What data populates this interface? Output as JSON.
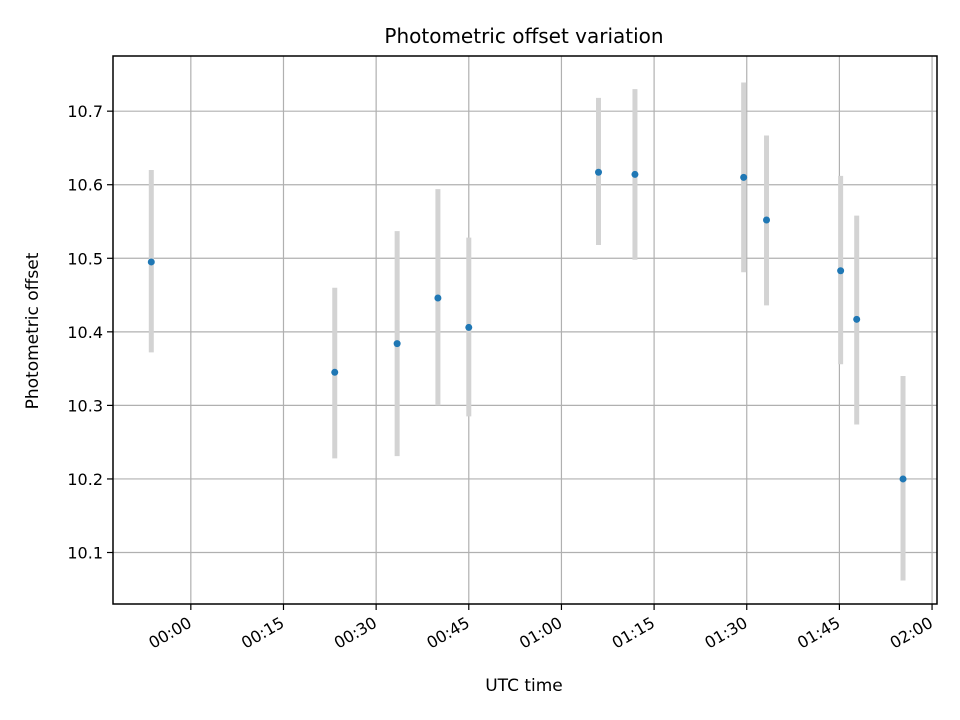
{
  "chart_data": {
    "type": "scatter",
    "title": "Photometric offset variation",
    "xlabel": "UTC time",
    "ylabel": "Photometric offset",
    "x_ticks": [
      "00:00",
      "00:15",
      "00:30",
      "00:45",
      "01:00",
      "01:15",
      "01:30",
      "01:45",
      "02:00"
    ],
    "y_ticks": [
      "10.1",
      "10.2",
      "10.3",
      "10.4",
      "10.5",
      "10.6",
      "10.7"
    ],
    "xlim": [
      "-00:12.6",
      "02:00.8"
    ],
    "ylim": [
      10.03,
      10.775
    ],
    "grid": true,
    "colors": {
      "points": "#1f77b4",
      "errorbars": "#d3d3d3",
      "grid": "#b0b0b0"
    },
    "points": [
      {
        "time": "-00:06.4",
        "value": 10.495,
        "low": 10.372,
        "high": 10.62
      },
      {
        "time": "00:23.3",
        "value": 10.345,
        "low": 10.228,
        "high": 10.46
      },
      {
        "time": "00:33.4",
        "value": 10.384,
        "low": 10.231,
        "high": 10.537
      },
      {
        "time": "00:40.0",
        "value": 10.446,
        "low": 10.3,
        "high": 10.594
      },
      {
        "time": "00:45.0",
        "value": 10.406,
        "low": 10.285,
        "high": 10.528
      },
      {
        "time": "01:06.0",
        "value": 10.617,
        "low": 10.518,
        "high": 10.718
      },
      {
        "time": "01:11.9",
        "value": 10.614,
        "low": 10.498,
        "high": 10.73
      },
      {
        "time": "01:29.5",
        "value": 10.61,
        "low": 10.481,
        "high": 10.739
      },
      {
        "time": "01:33.2",
        "value": 10.552,
        "low": 10.436,
        "high": 10.667
      },
      {
        "time": "01:45.2",
        "value": 10.483,
        "low": 10.356,
        "high": 10.612
      },
      {
        "time": "01:47.8",
        "value": 10.417,
        "low": 10.274,
        "high": 10.558
      },
      {
        "time": "01:55.3",
        "value": 10.2,
        "low": 10.062,
        "high": 10.34
      }
    ]
  }
}
